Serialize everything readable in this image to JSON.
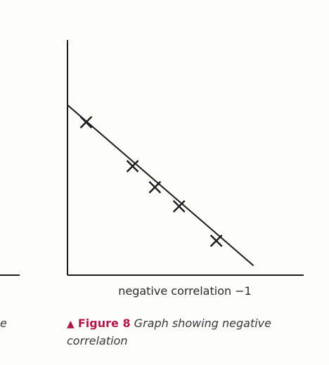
{
  "chart_data": {
    "type": "scatter",
    "points": [
      {
        "x": 1,
        "y": 8
      },
      {
        "x": 3.5,
        "y": 5.7
      },
      {
        "x": 4.7,
        "y": 4.6
      },
      {
        "x": 6,
        "y": 3.6
      },
      {
        "x": 8,
        "y": 1.8
      }
    ],
    "trend_line": {
      "x": [
        0,
        10
      ],
      "y": [
        8.9,
        0.5
      ]
    },
    "xlabel": "negative correlation −1",
    "ylabel": "",
    "xlim": [
      0,
      12.7
    ],
    "ylim": [
      0,
      12.3
    ],
    "grid": false,
    "title": "",
    "colors": {
      "ink": "#1a1a1a"
    }
  },
  "caption": {
    "marker": "▲",
    "label": "Figure 8",
    "text": "Graph showing negative correlation"
  },
  "left_fragment": "e"
}
